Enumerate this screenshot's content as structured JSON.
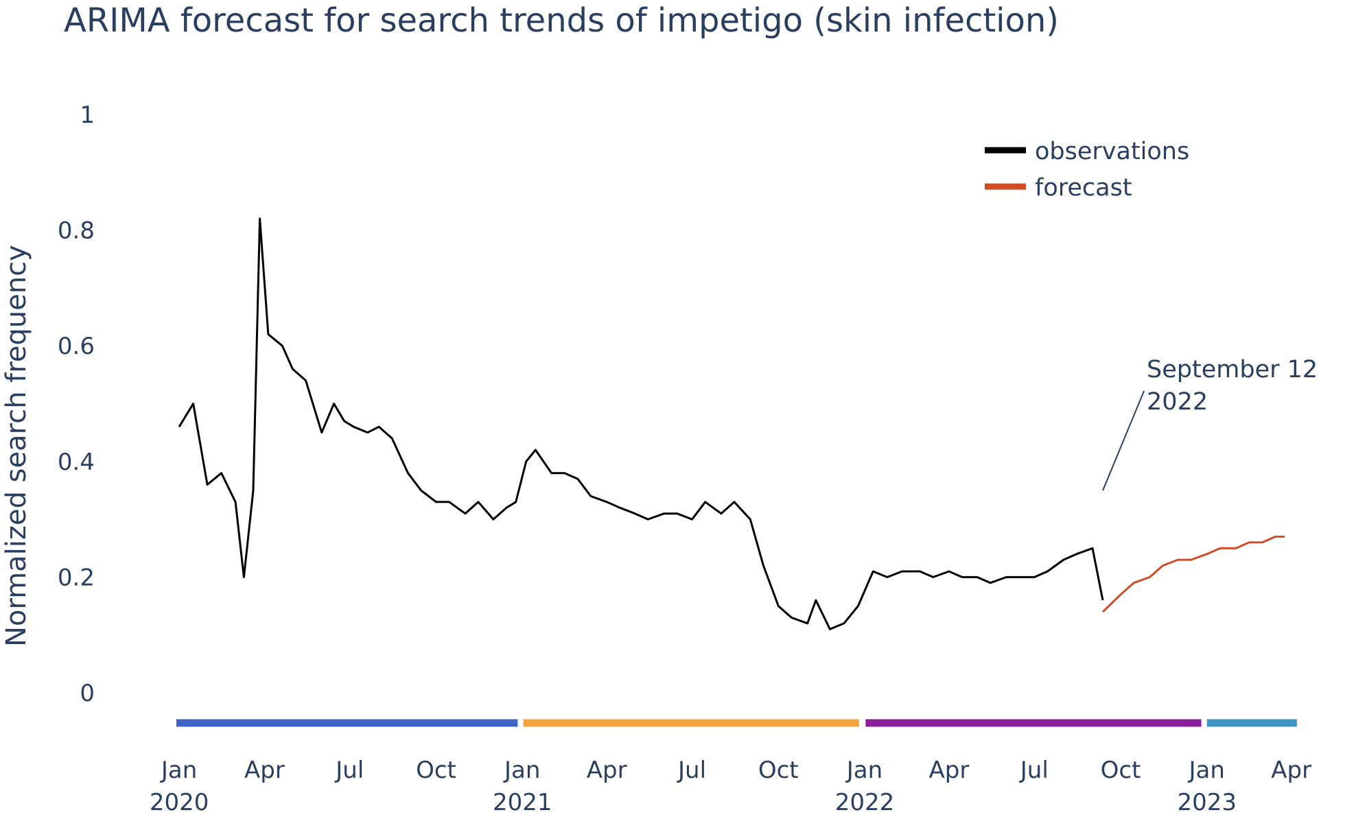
{
  "chart_data": {
    "type": "line",
    "title": "ARIMA forecast for search trends of impetigo (skin infection)",
    "ylabel": "Normalized search frequency",
    "xlabel": "",
    "ylim": [
      0,
      1
    ],
    "xlim": [
      "2019-12-29",
      "2023-04-10"
    ],
    "grid": false,
    "legend_position": "top-right",
    "y_ticks": [
      {
        "value": 0,
        "label": "0"
      },
      {
        "value": 0.2,
        "label": "0.2"
      },
      {
        "value": 0.4,
        "label": "0.4"
      },
      {
        "value": 0.6,
        "label": "0.6"
      },
      {
        "value": 0.8,
        "label": "0.8"
      },
      {
        "value": 1,
        "label": "1"
      }
    ],
    "x_ticks": [
      {
        "date": "2020-01-01",
        "label": "Jan",
        "year": "2020"
      },
      {
        "date": "2020-04-01",
        "label": "Apr",
        "year": ""
      },
      {
        "date": "2020-07-01",
        "label": "Jul",
        "year": ""
      },
      {
        "date": "2020-10-01",
        "label": "Oct",
        "year": ""
      },
      {
        "date": "2021-01-01",
        "label": "Jan",
        "year": "2021"
      },
      {
        "date": "2021-04-01",
        "label": "Apr",
        "year": ""
      },
      {
        "date": "2021-07-01",
        "label": "Jul",
        "year": ""
      },
      {
        "date": "2021-10-01",
        "label": "Oct",
        "year": ""
      },
      {
        "date": "2022-01-01",
        "label": "Jan",
        "year": "2022"
      },
      {
        "date": "2022-04-01",
        "label": "Apr",
        "year": ""
      },
      {
        "date": "2022-07-01",
        "label": "Jul",
        "year": ""
      },
      {
        "date": "2022-10-01",
        "label": "Oct",
        "year": ""
      },
      {
        "date": "2023-01-01",
        "label": "Jan",
        "year": "2023"
      },
      {
        "date": "2023-04-01",
        "label": "Apr",
        "year": ""
      }
    ],
    "series": [
      {
        "name": "observations",
        "color": "#000000",
        "x": [
          "2020-01-01",
          "2020-01-16",
          "2020-01-31",
          "2020-02-15",
          "2020-03-01",
          "2020-03-10",
          "2020-03-20",
          "2020-03-27",
          "2020-04-05",
          "2020-04-20",
          "2020-05-01",
          "2020-05-15",
          "2020-06-01",
          "2020-06-14",
          "2020-06-25",
          "2020-07-05",
          "2020-07-20",
          "2020-08-01",
          "2020-08-15",
          "2020-09-01",
          "2020-09-15",
          "2020-10-01",
          "2020-10-15",
          "2020-11-01",
          "2020-11-15",
          "2020-12-01",
          "2020-12-15",
          "2020-12-25",
          "2021-01-05",
          "2021-01-15",
          "2021-02-01",
          "2021-02-15",
          "2021-03-01",
          "2021-03-15",
          "2021-04-01",
          "2021-04-15",
          "2021-05-01",
          "2021-05-15",
          "2021-06-01",
          "2021-06-15",
          "2021-07-01",
          "2021-07-15",
          "2021-08-01",
          "2021-08-15",
          "2021-09-01",
          "2021-09-15",
          "2021-10-01",
          "2021-10-15",
          "2021-11-01",
          "2021-11-10",
          "2021-11-25",
          "2021-12-10",
          "2021-12-25",
          "2022-01-10",
          "2022-01-25",
          "2022-02-10",
          "2022-03-01",
          "2022-03-15",
          "2022-04-01",
          "2022-04-15",
          "2022-05-01",
          "2022-05-15",
          "2022-06-01",
          "2022-06-15",
          "2022-07-01",
          "2022-07-15",
          "2022-08-01",
          "2022-08-15",
          "2022-09-01",
          "2022-09-12"
        ],
        "y": [
          0.46,
          0.5,
          0.36,
          0.38,
          0.33,
          0.2,
          0.35,
          0.82,
          0.62,
          0.6,
          0.56,
          0.54,
          0.45,
          0.5,
          0.47,
          0.46,
          0.45,
          0.46,
          0.44,
          0.38,
          0.35,
          0.33,
          0.33,
          0.31,
          0.33,
          0.3,
          0.32,
          0.33,
          0.4,
          0.42,
          0.38,
          0.38,
          0.37,
          0.34,
          0.33,
          0.32,
          0.31,
          0.3,
          0.31,
          0.31,
          0.3,
          0.33,
          0.31,
          0.33,
          0.3,
          0.22,
          0.15,
          0.13,
          0.12,
          0.16,
          0.11,
          0.12,
          0.15,
          0.21,
          0.2,
          0.21,
          0.21,
          0.2,
          0.21,
          0.2,
          0.2,
          0.19,
          0.2,
          0.2,
          0.2,
          0.21,
          0.23,
          0.24,
          0.25,
          0.16
        ]
      },
      {
        "name": "forecast",
        "color": "#d14b25",
        "x": [
          "2022-09-12",
          "2022-10-01",
          "2022-10-15",
          "2022-11-01",
          "2022-11-15",
          "2022-12-01",
          "2022-12-15",
          "2023-01-01",
          "2023-01-15",
          "2023-02-01",
          "2023-02-15",
          "2023-03-01",
          "2023-03-15",
          "2023-03-25"
        ],
        "y": [
          0.14,
          0.17,
          0.19,
          0.2,
          0.22,
          0.23,
          0.23,
          0.24,
          0.25,
          0.25,
          0.26,
          0.26,
          0.27,
          0.27
        ]
      }
    ],
    "annotations": [
      {
        "date": "2022-09-12",
        "y": 0.35,
        "line1": "September 12",
        "line2": "2022"
      }
    ],
    "period_bars": [
      {
        "start": "2019-12-29",
        "end": "2020-12-27",
        "color": "#3f64c6"
      },
      {
        "start": "2021-01-02",
        "end": "2021-12-26",
        "color": "#f2a33a"
      },
      {
        "start": "2022-01-02",
        "end": "2022-12-26",
        "color": "#8a1e9b"
      },
      {
        "start": "2023-01-01",
        "end": "2023-04-07",
        "color": "#3f94c3"
      }
    ]
  }
}
